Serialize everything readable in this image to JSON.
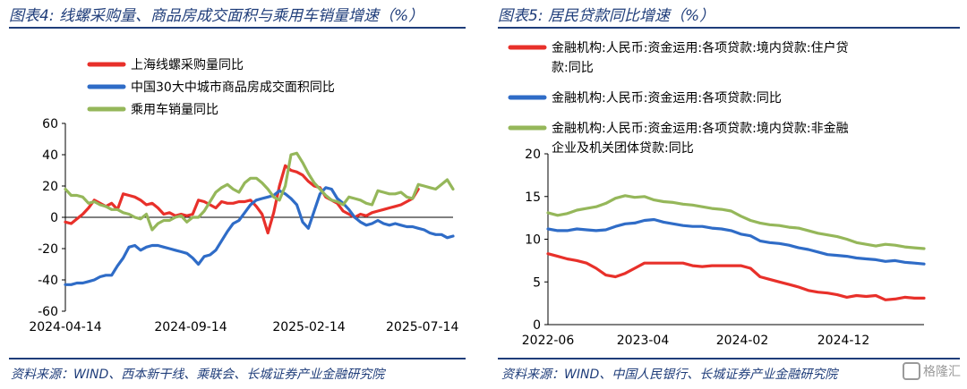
{
  "left": {
    "title": "图表4:  线螺采购量、商品房成交面积与乘用车销量增速（%）",
    "source": "资料来源：WIND、西本新干线、乘联会、长城证券产业金融研究院"
  },
  "right": {
    "title": "图表5:  居民贷款同比增速（%）",
    "source": "资料来源：WIND、中国人民银行、长城证券产业金融研究院"
  },
  "watermark": "格隆汇",
  "chart_data": [
    {
      "type": "line",
      "x_ticks": [
        "2024-04-14",
        "2024-09-14",
        "2025-02-14",
        "2025-07-14"
      ],
      "ylim": [
        -60,
        60
      ],
      "yticks": [
        -60,
        -40,
        -20,
        0,
        20,
        40,
        60
      ],
      "grid": false,
      "legend": "top",
      "n_points": 68,
      "series": [
        {
          "name": "上海线螺采购量同比",
          "color": "#e8302a",
          "values": [
            -3,
            -4,
            -1,
            2,
            6,
            11,
            9,
            7,
            9,
            5,
            15,
            14,
            13,
            11,
            8,
            9,
            6,
            2,
            3,
            1,
            2,
            1,
            2,
            11,
            10,
            8,
            6,
            10,
            9,
            9,
            10,
            10,
            11,
            7,
            2,
            -10,
            3,
            20,
            33,
            30,
            29,
            27,
            23,
            20,
            19,
            13,
            11,
            9,
            4,
            2,
            0,
            2,
            1,
            3,
            4,
            5,
            6,
            7,
            8,
            10,
            12,
            18,
            null,
            null,
            null,
            null,
            null,
            null
          ]
        },
        {
          "name": "中国30大中城市商品房成交面积同比",
          "color": "#2f6cc7",
          "values": [
            -43,
            -43,
            -42,
            -42,
            -41,
            -40,
            -38,
            -37,
            -37,
            -31,
            -26,
            -19,
            -18,
            -21,
            -19,
            -18,
            -18,
            -19,
            -20,
            -21,
            -22,
            -23,
            -26,
            -30,
            -25,
            -24,
            -21,
            -15,
            -9,
            -4,
            -2,
            3,
            8,
            11,
            12,
            13,
            14,
            17,
            15,
            12,
            8,
            -3,
            -7,
            4,
            15,
            19,
            18,
            12,
            9,
            5,
            0,
            -3,
            -5,
            -4,
            -2,
            -4,
            -5,
            -4,
            -5,
            -6,
            -6,
            -7,
            -8,
            -10,
            -11,
            -11,
            -13,
            -12
          ]
        },
        {
          "name": "乘用车销量同比",
          "color": "#95b75a",
          "values": [
            18,
            14,
            14,
            13,
            9,
            10,
            8,
            7,
            5,
            5,
            3,
            2,
            0,
            -1,
            2,
            -8,
            -4,
            -2,
            -2,
            0,
            1,
            -3,
            0,
            0,
            4,
            10,
            16,
            19,
            21,
            18,
            16,
            22,
            25,
            25,
            22,
            18,
            13,
            11,
            20,
            40,
            41,
            35,
            28,
            22,
            18,
            14,
            11,
            10,
            8,
            13,
            12,
            11,
            9,
            8,
            17,
            16,
            15,
            15,
            16,
            13,
            12,
            21,
            20,
            19,
            18,
            21,
            24,
            18
          ]
        }
      ]
    },
    {
      "type": "line",
      "x_ticks": [
        "2022-06",
        "2023-04",
        "2024-02",
        "2024-12"
      ],
      "ylim": [
        0,
        20
      ],
      "yticks": [
        0,
        5,
        10,
        15,
        20
      ],
      "grid": false,
      "legend": "top",
      "n_points": 40,
      "series": [
        {
          "name": "金融机构:人民币:资金运用:各项贷款:境内贷款:住户贷款:同比",
          "color": "#e8302a",
          "values": [
            8.3,
            8.0,
            7.7,
            7.5,
            7.2,
            6.6,
            5.8,
            5.6,
            6.0,
            6.6,
            7.2,
            7.2,
            7.2,
            7.2,
            7.2,
            6.9,
            6.8,
            6.9,
            6.9,
            6.9,
            6.9,
            6.6,
            5.6,
            5.3,
            5.0,
            4.7,
            4.4,
            4.0,
            3.8,
            3.7,
            3.5,
            3.2,
            3.4,
            3.3,
            3.4,
            2.9,
            3.0,
            3.2,
            3.1,
            3.1
          ]
        },
        {
          "name": "金融机构:人民币:资金运用:各项贷款:同比",
          "color": "#2f6cc7",
          "values": [
            11.2,
            11.0,
            11.0,
            11.2,
            11.1,
            11.0,
            11.1,
            11.5,
            11.8,
            11.9,
            12.2,
            12.3,
            12.0,
            11.8,
            11.6,
            11.5,
            11.5,
            11.3,
            11.2,
            11.0,
            10.6,
            10.4,
            9.8,
            9.6,
            9.5,
            9.3,
            9.0,
            8.8,
            8.5,
            8.2,
            8.1,
            8.0,
            7.8,
            7.7,
            7.6,
            7.4,
            7.5,
            7.3,
            7.2,
            7.1
          ]
        },
        {
          "name": "金融机构:人民币:资金运用:各项贷款:境内贷款:非金融企业及机关团体贷款:同比",
          "color": "#95b75a",
          "values": [
            13.1,
            12.8,
            13.0,
            13.4,
            13.6,
            13.8,
            14.2,
            14.8,
            15.1,
            14.9,
            15.0,
            14.6,
            14.4,
            14.3,
            14.1,
            14.0,
            13.8,
            13.6,
            13.5,
            13.3,
            12.7,
            12.2,
            11.9,
            11.7,
            11.6,
            11.4,
            11.3,
            11.0,
            10.7,
            10.5,
            10.3,
            10.0,
            9.6,
            9.4,
            9.2,
            9.4,
            9.3,
            9.1,
            9.0,
            8.9
          ]
        }
      ]
    }
  ]
}
